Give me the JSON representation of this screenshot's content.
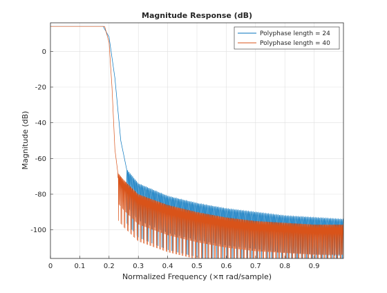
{
  "chart_data": {
    "type": "line",
    "title": "Magnitude Response (dB)",
    "xlabel": "Normalized Frequency (×π rad/sample)",
    "ylabel": "Magnitude (dB)",
    "xlim": [
      0,
      1
    ],
    "ylim": [
      -116,
      16
    ],
    "xticks": [
      0,
      0.1,
      0.2,
      0.3,
      0.4,
      0.5,
      0.6,
      0.7,
      0.8,
      0.9
    ],
    "xtick_labels": [
      "0",
      "0.1",
      "0.2",
      "0.3",
      "0.4",
      "0.5",
      "0.6",
      "0.7",
      "0.8",
      "0.9"
    ],
    "yticks": [
      0,
      -20,
      -40,
      -60,
      -80,
      -100
    ],
    "ytick_labels": [
      "0",
      "-20",
      "-40",
      "-60",
      "-80",
      "-100"
    ],
    "grid": true,
    "legend_position": "top-right",
    "series": [
      {
        "name": "Polyphase length = 24",
        "color": "#0072BD",
        "passband_level": 14,
        "envelope": {
          "x": [
            0,
            0.18,
            0.2,
            0.22,
            0.24,
            0.26,
            0.3,
            0.4,
            0.5,
            0.6,
            0.7,
            0.8,
            0.9,
            1.0
          ],
          "y": [
            14,
            14,
            8,
            -15,
            -50,
            -66,
            -74,
            -81,
            -85,
            -88,
            -90,
            -92,
            -93,
            -94
          ]
        },
        "ripple_period": 0.0085
      },
      {
        "name": "Polyphase length = 40",
        "color": "#D95319",
        "passband_level": 14,
        "envelope": {
          "x": [
            0,
            0.185,
            0.2,
            0.21,
            0.22,
            0.23,
            0.25,
            0.3,
            0.4,
            0.5,
            0.6,
            0.7,
            0.8,
            0.9,
            1.0
          ],
          "y": [
            14,
            14,
            5,
            -20,
            -55,
            -68,
            -72,
            -80,
            -86,
            -90,
            -93,
            -95,
            -96,
            -97,
            -97
          ]
        },
        "ripple_period": 0.0055
      }
    ]
  }
}
